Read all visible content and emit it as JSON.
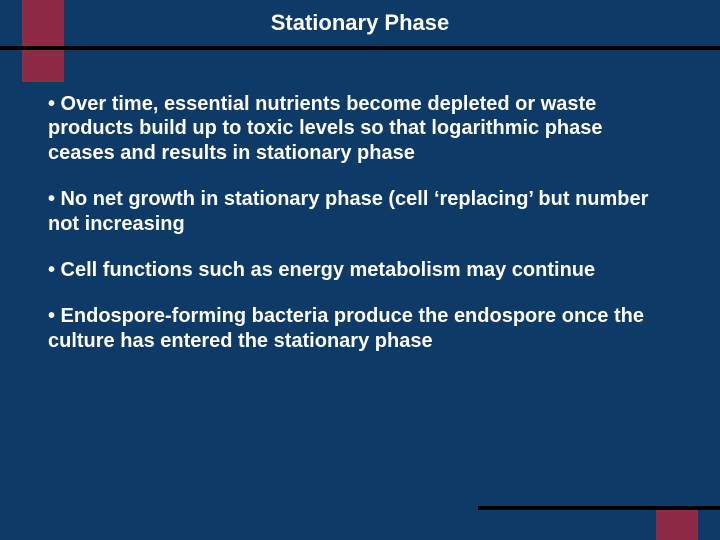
{
  "colors": {
    "background": "#0d3a66",
    "accent": "#8e2a45",
    "rule": "#000000",
    "text": "#ffffff"
  },
  "title": "Stationary Phase",
  "title_fontsize": 22,
  "body_fontsize": 20,
  "bullets": [
    "• Over time, essential nutrients become depleted or waste products build up to toxic levels so that logarithmic phase ceases and results in stationary phase",
    "• No net growth in stationary phase  (cell ‘replacing’ but number not increasing",
    "• Cell functions such as energy metabolism may continue",
    "• Endospore-forming bacteria produce the endospore once the culture has entered the stationary phase"
  ]
}
